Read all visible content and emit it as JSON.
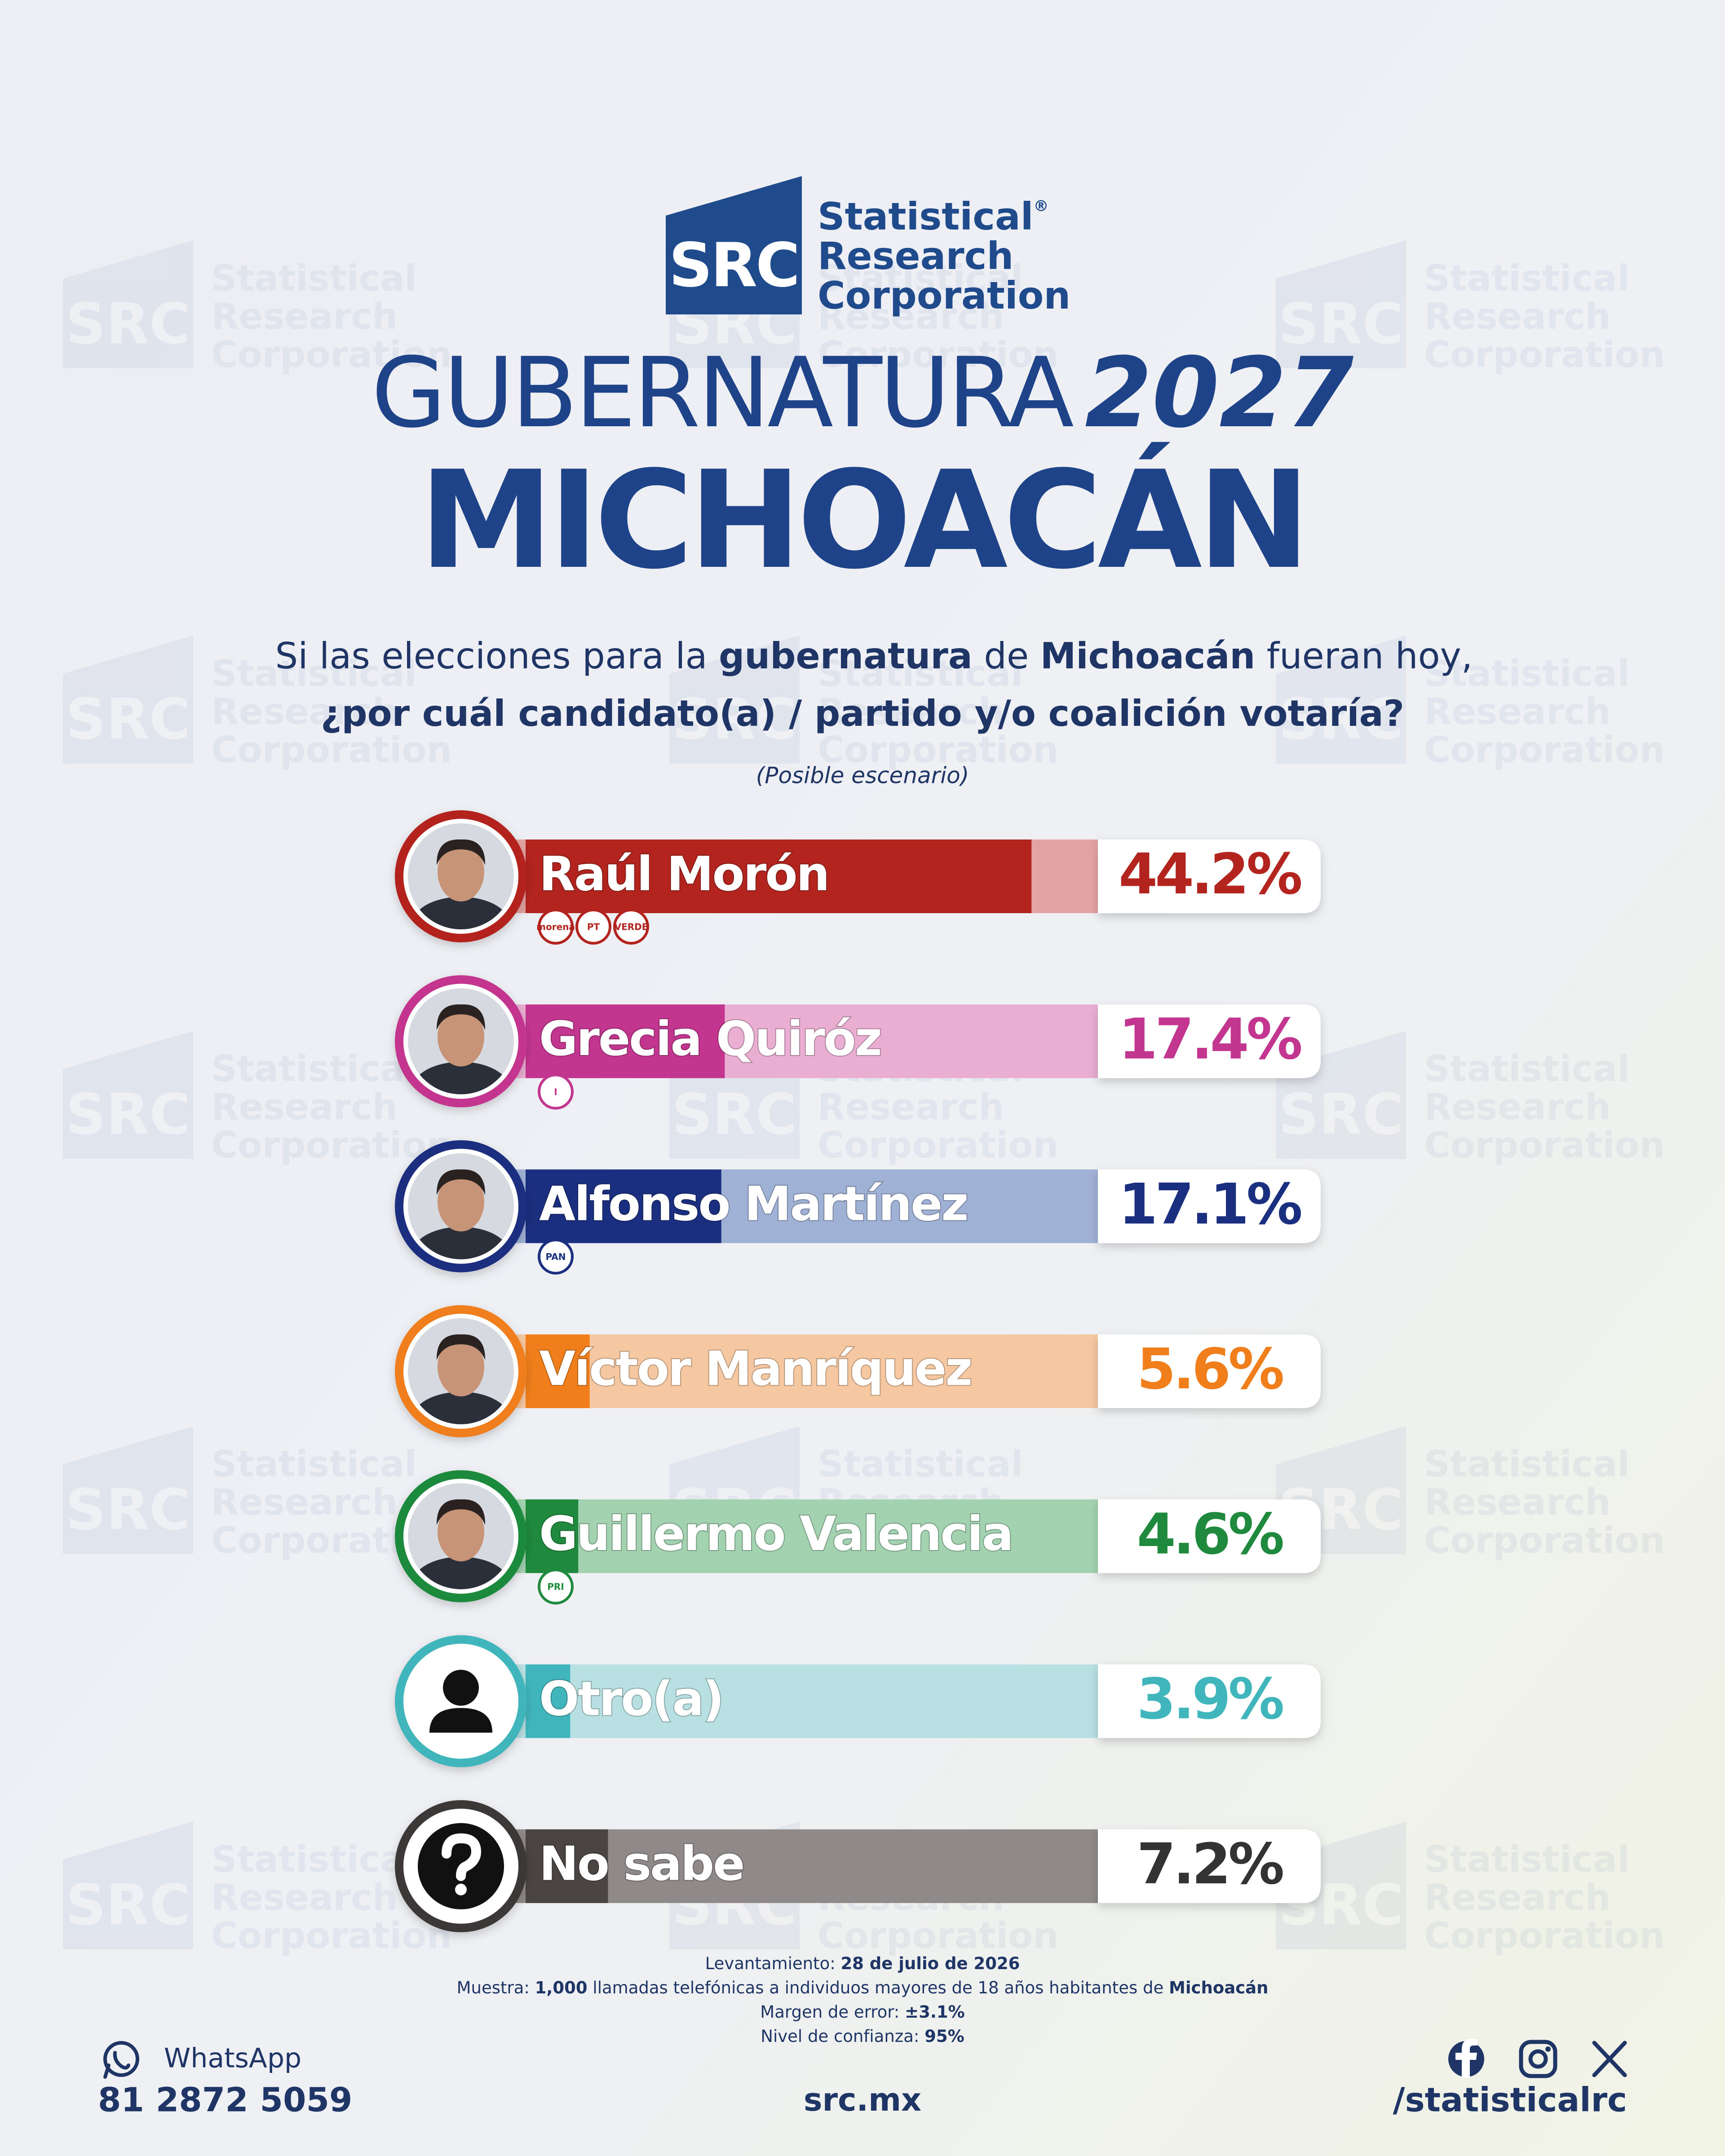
{
  "header": {
    "logo": {
      "mark": "SRC",
      "line1": "Statistical",
      "registered": "®",
      "line2": "Research",
      "line3": "Corporation"
    },
    "title": "GUBERNATURA",
    "year": "2027",
    "state": "MICHOACÁN",
    "question": {
      "line1": [
        "Si las elecciones para la ",
        "gubernatura",
        " de ",
        "Michoacán",
        " fueran hoy,"
      ],
      "line2": "¿por cuál candidato(a) / partido y/o coalición votaría?"
    },
    "scenario": "(Posible escenario)"
  },
  "chart_data": {
    "type": "bar",
    "orientation": "horizontal",
    "categories": [
      "Raúl Morón",
      "Grecia Quiróz",
      "Alfonso Martínez",
      "Víctor Manríquez",
      "Guillermo Valencia",
      "Otro(a)",
      "No sabe"
    ],
    "values": [
      44.2,
      17.4,
      17.1,
      5.6,
      4.6,
      3.9,
      7.2
    ],
    "value_labels": [
      "44.2%",
      "17.4%",
      "17.1%",
      "5.6%",
      "4.6%",
      "3.9%",
      "7.2%"
    ],
    "colors": [
      "#b3241f",
      "#c3368f",
      "#1b2f80",
      "#f07e1b",
      "#1f8a3d",
      "#40b6bc",
      "#4a4443"
    ],
    "track_colors": [
      "#e2a3a2",
      "#e9aed2",
      "#a0b1d6",
      "#f6c8a1",
      "#a2d2b0",
      "#b8e0e2",
      "#8f8a89"
    ],
    "label_colors": [
      "#b3241f",
      "#c3368f",
      "#1b2f80",
      "#f07e1b",
      "#1f8a3d",
      "#40b6bc",
      "#333333"
    ],
    "parties": [
      [
        "morena",
        "PT",
        "VERDE"
      ],
      [
        "I"
      ],
      [
        "PAN"
      ],
      [],
      [
        "PRI"
      ],
      [],
      []
    ],
    "xlim": [
      0,
      50
    ]
  },
  "methodology": [
    [
      "Levantamiento: ",
      "28 de julio de 2026"
    ],
    [
      "Muestra: ",
      "1,000",
      " llamadas telefónicas a individuos mayores de 18 años habitantes de ",
      "Michoacán"
    ],
    [
      "Margen de error: ",
      "±3.1%"
    ],
    [
      "Nivel de confianza: ",
      "95%"
    ]
  ],
  "footer": {
    "whatsapp_label": "WhatsApp",
    "phone": "81 2872 5059",
    "website": "src.mx",
    "handle": "/statisticalrc"
  }
}
